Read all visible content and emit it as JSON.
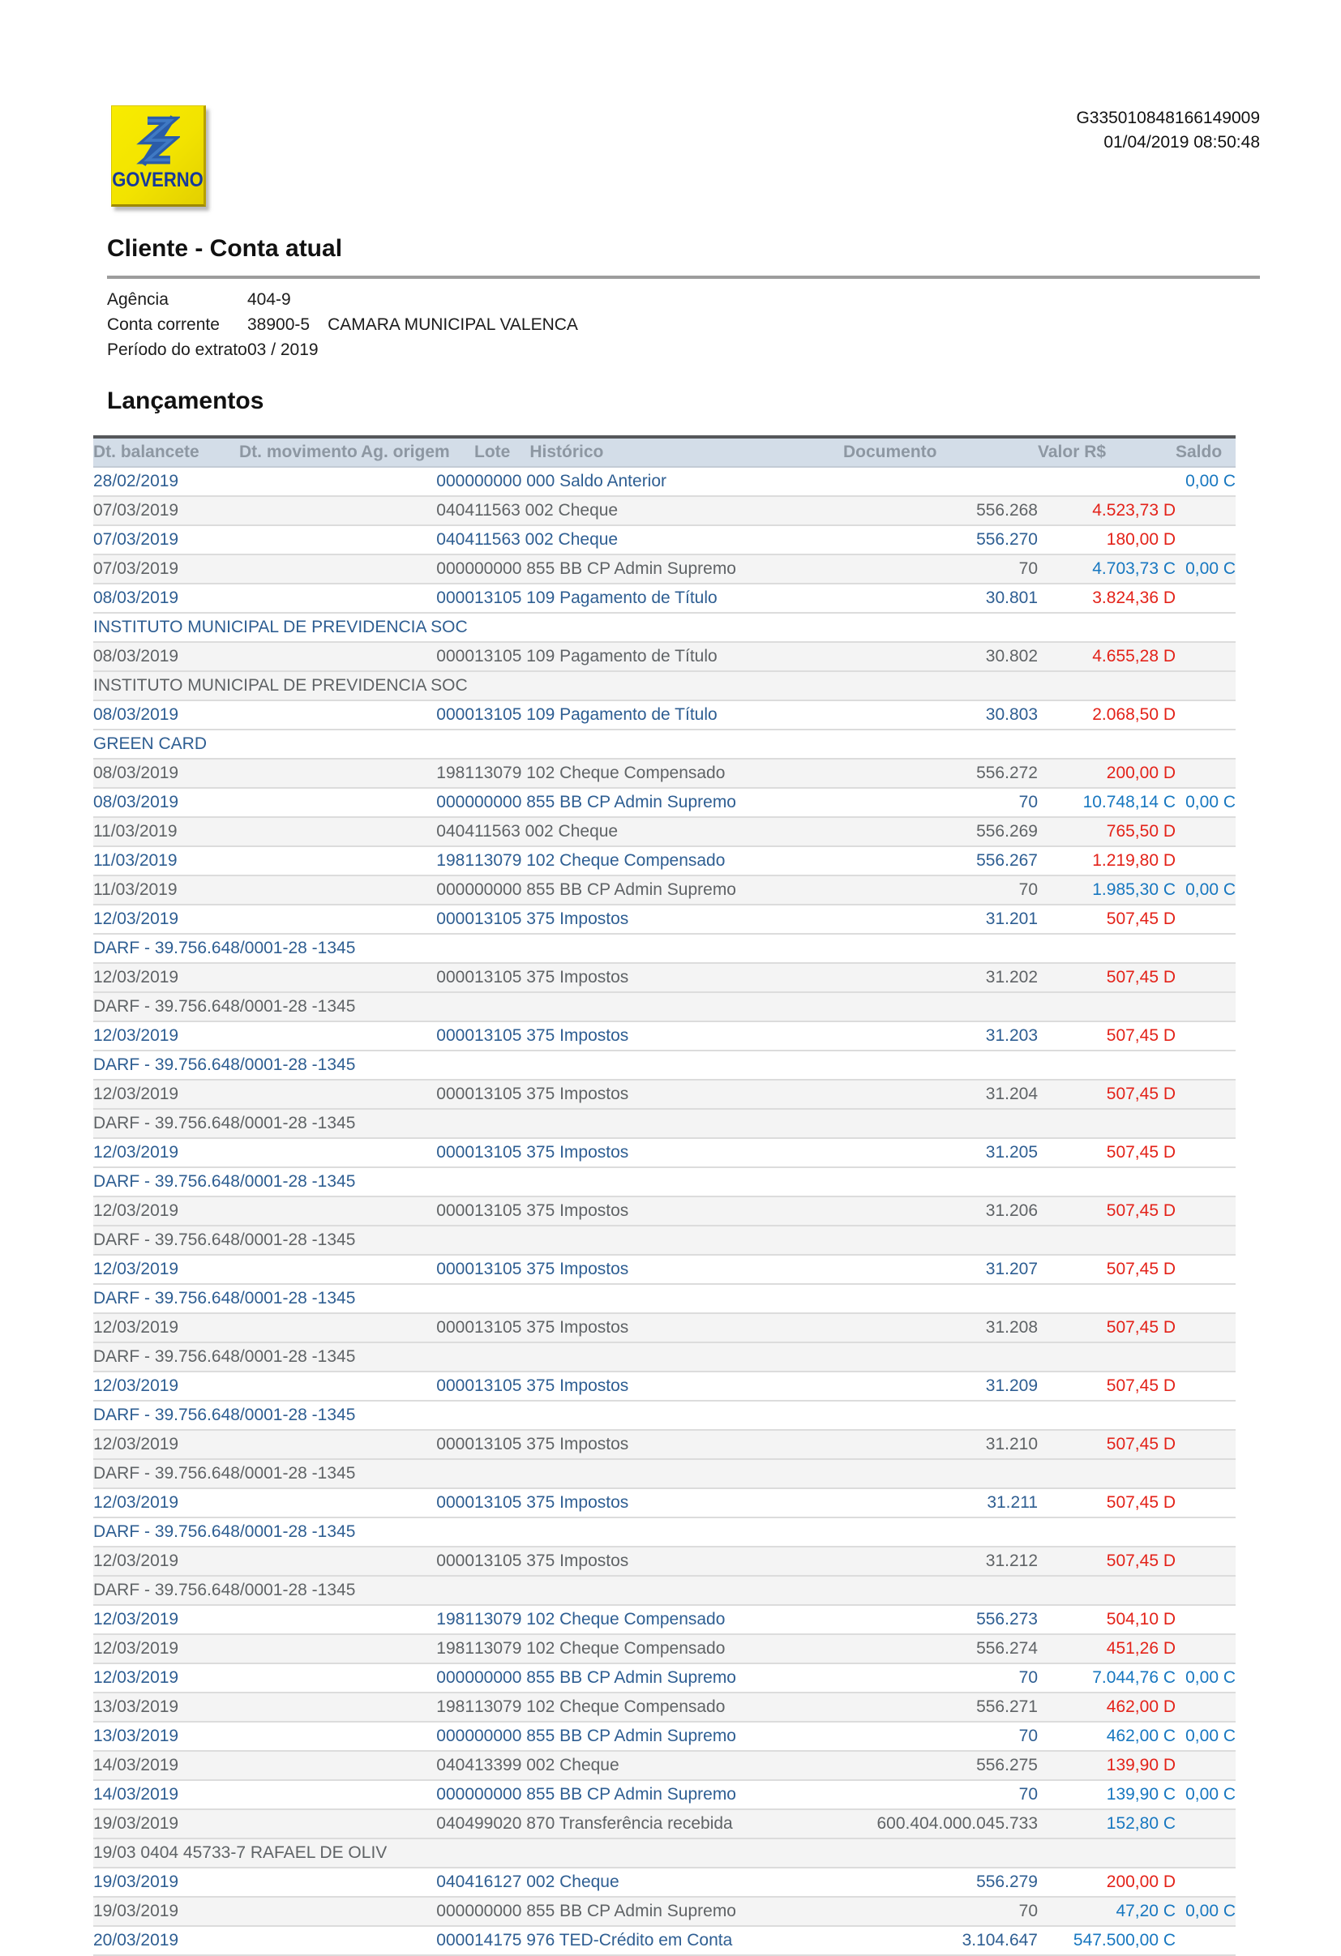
{
  "logo": {
    "label": "GOVERNO"
  },
  "meta": {
    "document_id": "G335010848166149009",
    "generated_at": "01/04/2019 08:50:48"
  },
  "client": {
    "title": "Cliente - Conta atual",
    "fields": [
      {
        "label": "Agência",
        "value": "404-9",
        "extra": ""
      },
      {
        "label": "Conta corrente",
        "value": "38900-5",
        "extra": "CAMARA MUNICIPAL VALENCA"
      },
      {
        "label": "Período do extrato",
        "value": "03 / 2019",
        "extra": ""
      }
    ]
  },
  "statement": {
    "title": "Lançamentos"
  },
  "table": {
    "headers": [
      "Dt. balancete",
      "Dt. movimento",
      "Ag. origem",
      "Lote",
      "Histórico",
      "Documento",
      "Valor R$",
      "Saldo"
    ],
    "rows": [
      {
        "dt": "28/02/2019",
        "mov": "",
        "ag": "0000",
        "hist": "00000 000 Saldo Anterior",
        "doc": "",
        "valor": "",
        "saldo": "0,00 C"
      },
      {
        "dt": "07/03/2019",
        "mov": "",
        "ag": "0404",
        "hist": "11563 002 Cheque",
        "doc": "556.268",
        "valor": "4.523,73 D",
        "saldo": ""
      },
      {
        "dt": "07/03/2019",
        "mov": "",
        "ag": "0404",
        "hist": "11563 002 Cheque",
        "doc": "556.270",
        "valor": "180,00 D",
        "saldo": ""
      },
      {
        "dt": "07/03/2019",
        "mov": "",
        "ag": "0000",
        "hist": "00000 855 BB CP Admin Supremo",
        "doc": "70",
        "valor": "4.703,73 C",
        "saldo": "0,00 C"
      },
      {
        "dt": "08/03/2019",
        "mov": "",
        "ag": "0000",
        "hist": "13105 109 Pagamento de Título",
        "doc": "30.801",
        "valor": "3.824,36 D",
        "saldo": "",
        "detail": "INSTITUTO MUNICIPAL DE PREVIDENCIA SOC"
      },
      {
        "dt": "08/03/2019",
        "mov": "",
        "ag": "0000",
        "hist": "13105 109 Pagamento de Título",
        "doc": "30.802",
        "valor": "4.655,28 D",
        "saldo": "",
        "detail": "INSTITUTO MUNICIPAL DE PREVIDENCIA SOC"
      },
      {
        "dt": "08/03/2019",
        "mov": "",
        "ag": "0000",
        "hist": "13105 109 Pagamento de Título",
        "doc": "30.803",
        "valor": "2.068,50 D",
        "saldo": "",
        "detail": "GREEN CARD"
      },
      {
        "dt": "08/03/2019",
        "mov": "",
        "ag": "1981",
        "hist": "13079 102 Cheque Compensado",
        "doc": "556.272",
        "valor": "200,00 D",
        "saldo": ""
      },
      {
        "dt": "08/03/2019",
        "mov": "",
        "ag": "0000",
        "hist": "00000 855 BB CP Admin Supremo",
        "doc": "70",
        "valor": "10.748,14 C",
        "saldo": "0,00 C"
      },
      {
        "dt": "11/03/2019",
        "mov": "",
        "ag": "0404",
        "hist": "11563 002 Cheque",
        "doc": "556.269",
        "valor": "765,50 D",
        "saldo": ""
      },
      {
        "dt": "11/03/2019",
        "mov": "",
        "ag": "1981",
        "hist": "13079 102 Cheque Compensado",
        "doc": "556.267",
        "valor": "1.219,80 D",
        "saldo": ""
      },
      {
        "dt": "11/03/2019",
        "mov": "",
        "ag": "0000",
        "hist": "00000 855 BB CP Admin Supremo",
        "doc": "70",
        "valor": "1.985,30 C",
        "saldo": "0,00 C"
      },
      {
        "dt": "12/03/2019",
        "mov": "",
        "ag": "0000",
        "hist": "13105 375 Impostos",
        "doc": "31.201",
        "valor": "507,45 D",
        "saldo": "",
        "detail": "DARF - 39.756.648/0001-28 -1345"
      },
      {
        "dt": "12/03/2019",
        "mov": "",
        "ag": "0000",
        "hist": "13105 375 Impostos",
        "doc": "31.202",
        "valor": "507,45 D",
        "saldo": "",
        "detail": "DARF - 39.756.648/0001-28 -1345"
      },
      {
        "dt": "12/03/2019",
        "mov": "",
        "ag": "0000",
        "hist": "13105 375 Impostos",
        "doc": "31.203",
        "valor": "507,45 D",
        "saldo": "",
        "detail": "DARF - 39.756.648/0001-28 -1345"
      },
      {
        "dt": "12/03/2019",
        "mov": "",
        "ag": "0000",
        "hist": "13105 375 Impostos",
        "doc": "31.204",
        "valor": "507,45 D",
        "saldo": "",
        "detail": "DARF - 39.756.648/0001-28 -1345"
      },
      {
        "dt": "12/03/2019",
        "mov": "",
        "ag": "0000",
        "hist": "13105 375 Impostos",
        "doc": "31.205",
        "valor": "507,45 D",
        "saldo": "",
        "detail": "DARF - 39.756.648/0001-28 -1345"
      },
      {
        "dt": "12/03/2019",
        "mov": "",
        "ag": "0000",
        "hist": "13105 375 Impostos",
        "doc": "31.206",
        "valor": "507,45 D",
        "saldo": "",
        "detail": "DARF - 39.756.648/0001-28 -1345"
      },
      {
        "dt": "12/03/2019",
        "mov": "",
        "ag": "0000",
        "hist": "13105 375 Impostos",
        "doc": "31.207",
        "valor": "507,45 D",
        "saldo": "",
        "detail": "DARF - 39.756.648/0001-28 -1345"
      },
      {
        "dt": "12/03/2019",
        "mov": "",
        "ag": "0000",
        "hist": "13105 375 Impostos",
        "doc": "31.208",
        "valor": "507,45 D",
        "saldo": "",
        "detail": "DARF - 39.756.648/0001-28 -1345"
      },
      {
        "dt": "12/03/2019",
        "mov": "",
        "ag": "0000",
        "hist": "13105 375 Impostos",
        "doc": "31.209",
        "valor": "507,45 D",
        "saldo": "",
        "detail": "DARF - 39.756.648/0001-28 -1345"
      },
      {
        "dt": "12/03/2019",
        "mov": "",
        "ag": "0000",
        "hist": "13105 375 Impostos",
        "doc": "31.210",
        "valor": "507,45 D",
        "saldo": "",
        "detail": "DARF - 39.756.648/0001-28 -1345"
      },
      {
        "dt": "12/03/2019",
        "mov": "",
        "ag": "0000",
        "hist": "13105 375 Impostos",
        "doc": "31.211",
        "valor": "507,45 D",
        "saldo": "",
        "detail": "DARF - 39.756.648/0001-28 -1345"
      },
      {
        "dt": "12/03/2019",
        "mov": "",
        "ag": "0000",
        "hist": "13105 375 Impostos",
        "doc": "31.212",
        "valor": "507,45 D",
        "saldo": "",
        "detail": "DARF - 39.756.648/0001-28 -1345"
      },
      {
        "dt": "12/03/2019",
        "mov": "",
        "ag": "1981",
        "hist": "13079 102 Cheque Compensado",
        "doc": "556.273",
        "valor": "504,10 D",
        "saldo": ""
      },
      {
        "dt": "12/03/2019",
        "mov": "",
        "ag": "1981",
        "hist": "13079 102 Cheque Compensado",
        "doc": "556.274",
        "valor": "451,26 D",
        "saldo": ""
      },
      {
        "dt": "12/03/2019",
        "mov": "",
        "ag": "0000",
        "hist": "00000 855 BB CP Admin Supremo",
        "doc": "70",
        "valor": "7.044,76 C",
        "saldo": "0,00 C"
      },
      {
        "dt": "13/03/2019",
        "mov": "",
        "ag": "1981",
        "hist": "13079 102 Cheque Compensado",
        "doc": "556.271",
        "valor": "462,00 D",
        "saldo": ""
      },
      {
        "dt": "13/03/2019",
        "mov": "",
        "ag": "0000",
        "hist": "00000 855 BB CP Admin Supremo",
        "doc": "70",
        "valor": "462,00 C",
        "saldo": "0,00 C"
      },
      {
        "dt": "14/03/2019",
        "mov": "",
        "ag": "0404",
        "hist": "13399 002 Cheque",
        "doc": "556.275",
        "valor": "139,90 D",
        "saldo": ""
      },
      {
        "dt": "14/03/2019",
        "mov": "",
        "ag": "0000",
        "hist": "00000 855 BB CP Admin Supremo",
        "doc": "70",
        "valor": "139,90 C",
        "saldo": "0,00 C"
      },
      {
        "dt": "19/03/2019",
        "mov": "",
        "ag": "0404",
        "hist": "99020 870 Transferência recebida",
        "doc": "600.404.000.045.733",
        "valor": "152,80 C",
        "saldo": "",
        "detail": "19/03 0404 45733-7 RAFAEL DE OLIV"
      },
      {
        "dt": "19/03/2019",
        "mov": "",
        "ag": "0404",
        "hist": "16127 002 Cheque",
        "doc": "556.279",
        "valor": "200,00 D",
        "saldo": ""
      },
      {
        "dt": "19/03/2019",
        "mov": "",
        "ag": "0000",
        "hist": "00000 855 BB CP Admin Supremo",
        "doc": "70",
        "valor": "47,20 C",
        "saldo": "0,00 C"
      },
      {
        "dt": "20/03/2019",
        "mov": "",
        "ag": "0000",
        "hist": "14175 976 TED-Crédito em Conta",
        "doc": "3.104.647",
        "valor": "547.500,00 C",
        "saldo": ""
      }
    ]
  }
}
